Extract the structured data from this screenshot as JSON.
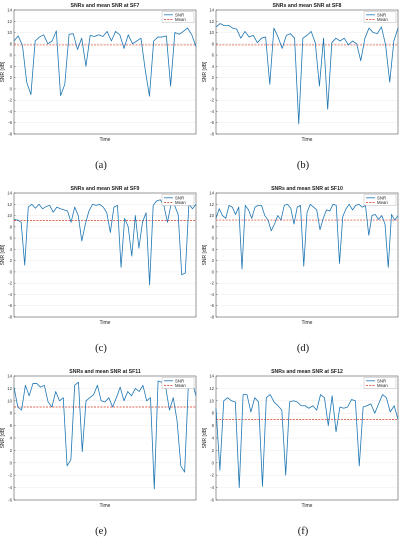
{
  "labels": {
    "legend_snr": "SNR",
    "legend_mean": "Mean",
    "xlabel": "Time",
    "ylabel": "SNR [dB]"
  },
  "colors": {
    "snr_line": "#1f77b4",
    "mean_line": "#d9331a",
    "axis": "#333333",
    "grid": "#e6e6e6"
  },
  "chart_data": [
    {
      "type": "line",
      "title": "SNRs and mean SNR at SF7",
      "caption": "(a)",
      "xlabel": "Time",
      "ylabel": "SNR [dB]",
      "ylim": [
        -8,
        14
      ],
      "yticks": [
        -8,
        -6,
        -4,
        -2,
        0,
        2,
        4,
        6,
        8,
        10,
        12,
        14
      ],
      "grid": true,
      "legend": "top-right",
      "series": [
        {
          "name": "SNR",
          "values": [
            8.5,
            9.4,
            7.7,
            1.2,
            -1.0,
            8.5,
            9.2,
            9.6,
            8.0,
            8.5,
            10.3,
            -1.2,
            0.8,
            9.7,
            9.8,
            7.0,
            9.0,
            4.0,
            9.5,
            9.3,
            9.6,
            9.3,
            10.2,
            8.5,
            10.2,
            9.6,
            7.2,
            9.6,
            8.0,
            8.5,
            9.0,
            3.4,
            -1.3,
            8.5,
            9.2,
            9.2,
            9.4,
            0.5,
            10.0,
            9.7,
            10.2,
            10.8,
            9.6,
            7.5
          ]
        },
        {
          "name": "Mean",
          "constant": 7.8
        }
      ]
    },
    {
      "type": "line",
      "title": "SNRs and mean SNR at SF8",
      "caption": "(b)",
      "xlabel": "Time",
      "ylabel": "SNR [dB]",
      "ylim": [
        -8,
        14
      ],
      "yticks": [
        -8,
        -6,
        -4,
        -2,
        0,
        2,
        4,
        6,
        8,
        10,
        12,
        14
      ],
      "grid": true,
      "legend": "top-right",
      "series": [
        {
          "name": "SNR",
          "values": [
            11.0,
            11.6,
            11.2,
            11.3,
            10.8,
            10.6,
            9.0,
            10.2,
            9.2,
            9.5,
            8.2,
            9.0,
            9.2,
            0.8,
            10.8,
            9.2,
            7.2,
            9.5,
            9.8,
            9.0,
            -6.2,
            9.0,
            9.5,
            10.2,
            8.2,
            0.5,
            9.0,
            -3.6,
            8.2,
            9.0,
            8.5,
            9.0,
            7.8,
            8.5,
            8.0,
            5.0,
            9.0,
            10.8,
            10.0,
            9.8,
            11.0,
            7.8,
            1.2,
            8.5,
            10.8
          ]
        },
        {
          "name": "Mean",
          "constant": 7.8
        }
      ]
    },
    {
      "type": "line",
      "title": "SNRs and mean SNR at SF9",
      "caption": "(c)",
      "xlabel": "Time",
      "ylabel": "SNR [dB]",
      "ylim": [
        -8,
        14
      ],
      "yticks": [
        -8,
        -6,
        -4,
        -2,
        0,
        2,
        4,
        6,
        8,
        10,
        12,
        14
      ],
      "grid": true,
      "legend": "top-right",
      "series": [
        {
          "name": "SNR",
          "values": [
            9.3,
            9.2,
            8.8,
            1.2,
            11.5,
            12.0,
            11.3,
            12.0,
            11.2,
            11.6,
            11.8,
            10.6,
            11.5,
            11.2,
            11.0,
            10.8,
            8.8,
            11.5,
            10.0,
            5.5,
            8.5,
            10.8,
            12.0,
            11.8,
            12.0,
            11.5,
            10.5,
            7.0,
            11.5,
            11.8,
            0.8,
            9.5,
            8.0,
            2.8,
            10.0,
            4.2,
            8.8,
            10.5,
            -2.3,
            11.8,
            12.6,
            12.8,
            11.8,
            8.8,
            12.0,
            11.8,
            10.2,
            -0.5,
            -0.2,
            12.0,
            11.2,
            12.0
          ]
        },
        {
          "name": "Mean",
          "constant": 9.1
        }
      ]
    },
    {
      "type": "line",
      "title": "SNRs and mean SNR at SF10",
      "caption": "(d)",
      "xlabel": "Time",
      "ylabel": "SNR [dB]",
      "ylim": [
        -8,
        14
      ],
      "yticks": [
        -8,
        -6,
        -4,
        -2,
        0,
        2,
        4,
        6,
        8,
        10,
        12,
        14
      ],
      "grid": true,
      "legend": "top-right",
      "series": [
        {
          "name": "SNR",
          "values": [
            9.5,
            11.2,
            10.0,
            9.5,
            11.8,
            11.5,
            10.2,
            11.5,
            0.5,
            11.8,
            11.0,
            9.5,
            11.5,
            11.8,
            11.8,
            10.0,
            9.2,
            7.3,
            8.5,
            10.0,
            9.2,
            11.8,
            12.0,
            11.3,
            8.5,
            11.5,
            11.8,
            1.0,
            10.5,
            12.0,
            11.5,
            11.0,
            7.5,
            9.5,
            11.0,
            10.8,
            12.0,
            11.8,
            1.5,
            9.8,
            11.2,
            12.0,
            11.0,
            11.8,
            12.0,
            11.5,
            11.8,
            6.5,
            10.0,
            10.2,
            9.3,
            10.0,
            8.5,
            0.8,
            10.2,
            9.2,
            10.0
          ]
        },
        {
          "name": "Mean",
          "constant": 9.2
        }
      ]
    },
    {
      "type": "line",
      "title": "SNRs and mean SNR at SF11",
      "caption": "(e)",
      "xlabel": "Time",
      "ylabel": "SNR [dB]",
      "ylim": [
        -6,
        14
      ],
      "yticks": [
        -6,
        -4,
        -2,
        0,
        2,
        4,
        6,
        8,
        10,
        12,
        14
      ],
      "grid": true,
      "legend": "top-right",
      "series": [
        {
          "name": "SNR",
          "values": [
            12.2,
            9.0,
            8.5,
            12.5,
            10.8,
            12.8,
            12.8,
            12.2,
            12.5,
            9.8,
            9.0,
            11.5,
            10.0,
            10.5,
            -0.5,
            0.5,
            12.5,
            13.0,
            1.8,
            10.0,
            10.5,
            11.0,
            12.5,
            10.0,
            9.8,
            10.5,
            9.0,
            10.5,
            12.2,
            10.0,
            11.5,
            10.8,
            12.0,
            11.5,
            12.5,
            10.0,
            10.5,
            -4.2,
            13.2,
            13.0,
            12.2,
            8.5,
            10.5,
            6.8,
            -0.5,
            -1.5,
            12.8,
            13.0,
            10.8
          ]
        },
        {
          "name": "Mean",
          "constant": 9.0
        }
      ]
    },
    {
      "type": "line",
      "title": "SNRs and mean SNR at SF12",
      "caption": "(f)",
      "xlabel": "Time",
      "ylabel": "SNR [dB]",
      "ylim": [
        -6,
        14
      ],
      "yticks": [
        -6,
        -4,
        -2,
        0,
        2,
        4,
        6,
        8,
        10,
        12,
        14
      ],
      "grid": true,
      "legend": "top-right",
      "series": [
        {
          "name": "SNR",
          "values": [
            8.8,
            -1.2,
            10.0,
            10.5,
            10.0,
            9.8,
            -4.0,
            11.0,
            11.0,
            8.2,
            10.5,
            9.8,
            -3.8,
            10.5,
            11.0,
            9.8,
            9.2,
            8.5,
            -2.0,
            9.8,
            10.0,
            9.8,
            9.2,
            9.2,
            8.8,
            9.2,
            8.5,
            11.0,
            10.5,
            6.0,
            10.8,
            5.0,
            9.0,
            8.8,
            9.0,
            10.2,
            10.0,
            -0.5,
            9.0,
            9.2,
            9.5,
            8.0,
            9.5,
            11.0,
            10.5,
            8.2,
            9.2,
            7.0
          ]
        },
        {
          "name": "Mean",
          "constant": 7.0
        }
      ]
    }
  ]
}
